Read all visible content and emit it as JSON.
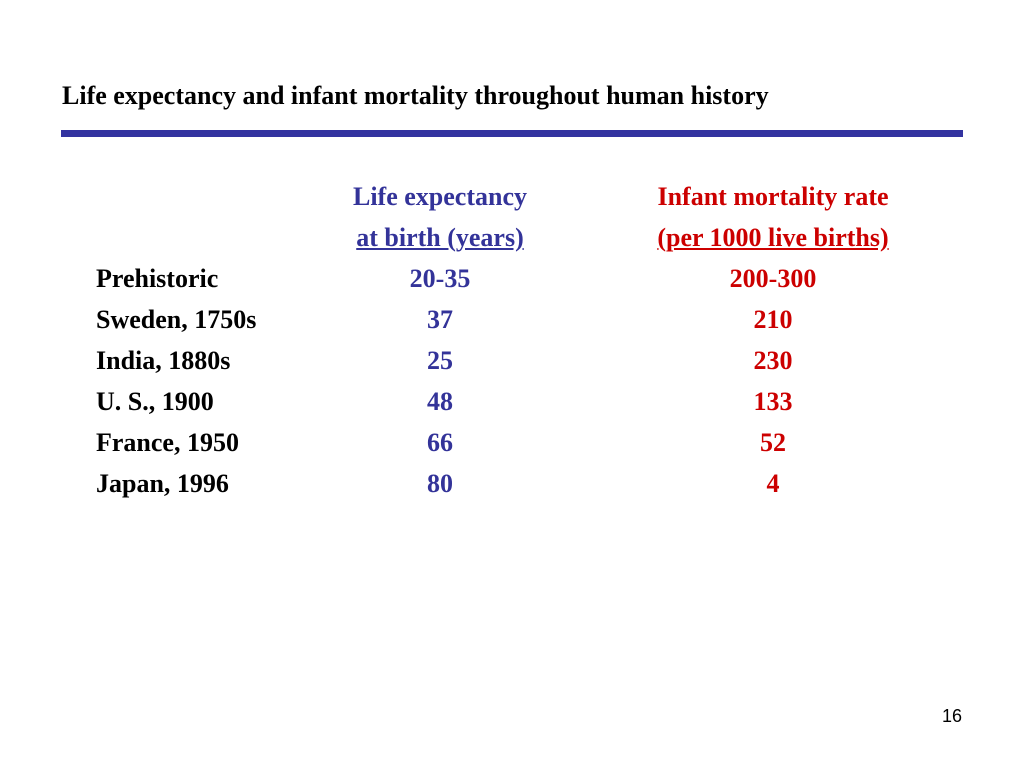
{
  "slide": {
    "title": "Life expectancy and infant mortality throughout human history",
    "page_number": "16"
  },
  "colors": {
    "rule": "#3333a0",
    "life_expectancy": "#333399",
    "infant_mortality": "#cc0000",
    "row_label": "#000000"
  },
  "table": {
    "headers": {
      "life_expectancy": {
        "line1": "Life expectancy",
        "line2": "at birth (years)"
      },
      "infant_mortality": {
        "line1": "Infant mortality rate",
        "line2": "(per 1000 live births)"
      }
    },
    "rows": [
      {
        "label": "Prehistoric",
        "life_expectancy": "20-35",
        "infant_mortality": "200-300"
      },
      {
        "label": "Sweden, 1750s",
        "life_expectancy": "37",
        "infant_mortality": "210"
      },
      {
        "label": "India, 1880s",
        "life_expectancy": "25",
        "infant_mortality": "230"
      },
      {
        "label": "U. S., 1900",
        "life_expectancy": "48",
        "infant_mortality": "133"
      },
      {
        "label": "France, 1950",
        "life_expectancy": "66",
        "infant_mortality": "52"
      },
      {
        "label": "Japan, 1996",
        "life_expectancy": "80",
        "infant_mortality": "4"
      }
    ]
  }
}
